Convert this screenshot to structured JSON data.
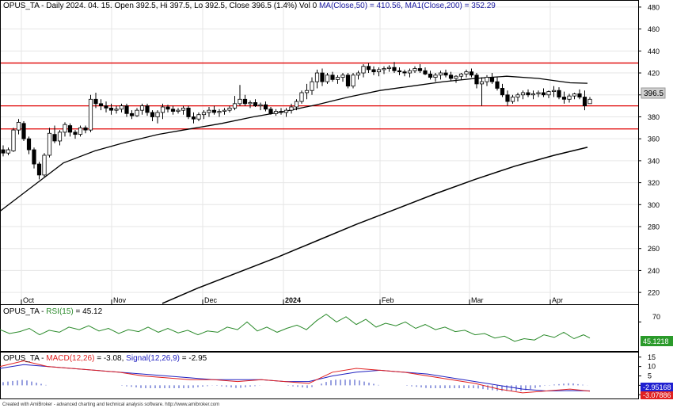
{
  "chart_data": {
    "type": "candlestick",
    "ticker": "OPUS_TA",
    "header": {
      "prefix": "OPUS_TA - Daily 2024. 04. 15. Open 392.5, Hi 397.5, Lo 392.5, Close 396.5 (1.4%) Vol 0",
      "ma50_label": "MA(Close,50) = 410.56",
      "ma200_label": ", MA1(Close,200) = 352.29"
    },
    "price_axis": {
      "min": 210,
      "max": 485,
      "ticks": [
        220,
        240,
        260,
        280,
        300,
        320,
        340,
        360,
        380,
        400,
        420,
        440,
        460,
        480
      ],
      "last_price_label": "396.5"
    },
    "month_labels": [
      {
        "label": "Oct",
        "pos": 27
      },
      {
        "label": "Nov",
        "pos": 141
      },
      {
        "label": "Dec",
        "pos": 256
      },
      {
        "label": "2024",
        "pos": 358,
        "bold": true
      },
      {
        "label": "Feb",
        "pos": 480
      },
      {
        "label": "Mar",
        "pos": 593
      },
      {
        "label": "Apr",
        "pos": 695
      }
    ],
    "horizontal_lines": [
      429,
      390,
      369
    ],
    "candles": [
      [
        350,
        354,
        344,
        347
      ],
      [
        347,
        352,
        345,
        350
      ],
      [
        349,
        370,
        348,
        368
      ],
      [
        368,
        378,
        364,
        375
      ],
      [
        374,
        376,
        358,
        360
      ],
      [
        360,
        362,
        346,
        350
      ],
      [
        350,
        352,
        333,
        337
      ],
      [
        337,
        339,
        323,
        327
      ],
      [
        327,
        347,
        325,
        345
      ],
      [
        345,
        370,
        343,
        365
      ],
      [
        364,
        372,
        356,
        358
      ],
      [
        358,
        368,
        354,
        366
      ],
      [
        366,
        375,
        362,
        373
      ],
      [
        372,
        374,
        362,
        366
      ],
      [
        366,
        368,
        360,
        364
      ],
      [
        364,
        372,
        362,
        370
      ],
      [
        370,
        372,
        365,
        368
      ],
      [
        368,
        400,
        366,
        396
      ],
      [
        396,
        402,
        388,
        392
      ],
      [
        392,
        396,
        386,
        390
      ],
      [
        390,
        394,
        384,
        388
      ],
      [
        388,
        392,
        382,
        386
      ],
      [
        386,
        390,
        383,
        387
      ],
      [
        387,
        392,
        384,
        390
      ],
      [
        390,
        392,
        380,
        383
      ],
      [
        383,
        386,
        378,
        381
      ],
      [
        381,
        388,
        380,
        386
      ],
      [
        386,
        392,
        382,
        390
      ],
      [
        390,
        392,
        381,
        384
      ],
      [
        384,
        386,
        376,
        380
      ],
      [
        380,
        386,
        374,
        384
      ],
      [
        384,
        392,
        378,
        389
      ],
      [
        389,
        391,
        384,
        387
      ],
      [
        387,
        390,
        382,
        385
      ],
      [
        385,
        388,
        383,
        386
      ],
      [
        386,
        390,
        382,
        388
      ],
      [
        388,
        390,
        378,
        380
      ],
      [
        380,
        384,
        374,
        378
      ],
      [
        378,
        384,
        376,
        382
      ],
      [
        382,
        386,
        378,
        384
      ],
      [
        384,
        389,
        380,
        386
      ],
      [
        386,
        390,
        382,
        384
      ],
      [
        384,
        387,
        380,
        385
      ],
      [
        385,
        388,
        382,
        386
      ],
      [
        386,
        390,
        384,
        388
      ],
      [
        388,
        399,
        386,
        392
      ],
      [
        392,
        409,
        390,
        396
      ],
      [
        396,
        400,
        390,
        392
      ],
      [
        392,
        395,
        388,
        393
      ],
      [
        393,
        396,
        389,
        390
      ],
      [
        390,
        393,
        386,
        391
      ],
      [
        391,
        394,
        385,
        387
      ],
      [
        387,
        389,
        382,
        383
      ],
      [
        383,
        387,
        381,
        385
      ],
      [
        385,
        388,
        382,
        384
      ],
      [
        384,
        388,
        380,
        386
      ],
      [
        386,
        392,
        383,
        389
      ],
      [
        389,
        396,
        386,
        394
      ],
      [
        394,
        404,
        392,
        402
      ],
      [
        402,
        410,
        396,
        404
      ],
      [
        404,
        416,
        400,
        412
      ],
      [
        412,
        423,
        406,
        420
      ],
      [
        420,
        424,
        408,
        412
      ],
      [
        412,
        420,
        410,
        418
      ],
      [
        418,
        421,
        412,
        414
      ],
      [
        414,
        418,
        410,
        416
      ],
      [
        416,
        420,
        412,
        418
      ],
      [
        418,
        420,
        406,
        408
      ],
      [
        408,
        420,
        406,
        418
      ],
      [
        418,
        422,
        414,
        420
      ],
      [
        420,
        428,
        416,
        426
      ],
      [
        426,
        429,
        420,
        423
      ],
      [
        423,
        426,
        418,
        421
      ],
      [
        421,
        425,
        417,
        423
      ],
      [
        423,
        426,
        419,
        424
      ],
      [
        424,
        427,
        421,
        425
      ],
      [
        425,
        430,
        420,
        422
      ],
      [
        422,
        425,
        418,
        421
      ],
      [
        421,
        423,
        417,
        420
      ],
      [
        420,
        424,
        416,
        422
      ],
      [
        422,
        426,
        420,
        424
      ],
      [
        424,
        428,
        420,
        422
      ],
      [
        422,
        425,
        418,
        419
      ],
      [
        419,
        422,
        414,
        416
      ],
      [
        416,
        420,
        412,
        418
      ],
      [
        418,
        422,
        414,
        420
      ],
      [
        420,
        423,
        416,
        418
      ],
      [
        418,
        421,
        413,
        415
      ],
      [
        415,
        418,
        411,
        417
      ],
      [
        417,
        420,
        414,
        419
      ],
      [
        419,
        423,
        416,
        421
      ],
      [
        421,
        424,
        416,
        418
      ],
      [
        418,
        420,
        406,
        410
      ],
      [
        410,
        416,
        390,
        412
      ],
      [
        412,
        418,
        408,
        416
      ],
      [
        416,
        420,
        410,
        412
      ],
      [
        412,
        416,
        404,
        406
      ],
      [
        406,
        410,
        398,
        400
      ],
      [
        400,
        404,
        390,
        394
      ],
      [
        394,
        400,
        392,
        398
      ],
      [
        398,
        402,
        394,
        400
      ],
      [
        400,
        404,
        396,
        402
      ],
      [
        402,
        405,
        398,
        400
      ],
      [
        400,
        404,
        396,
        401
      ],
      [
        401,
        404,
        398,
        402
      ],
      [
        402,
        406,
        398,
        400
      ],
      [
        400,
        404,
        397,
        403
      ],
      [
        403,
        408,
        398,
        404
      ],
      [
        404,
        407,
        396,
        398
      ],
      [
        398,
        403,
        392,
        396
      ],
      [
        396,
        401,
        393,
        399
      ],
      [
        399,
        402,
        396,
        401
      ],
      [
        401,
        405,
        396,
        398
      ],
      [
        398,
        404,
        386,
        390
      ],
      [
        392,
        398,
        392,
        396
      ]
    ],
    "ma50": {
      "name": "MA(Close,50)",
      "x": [
        0,
        40,
        80,
        120,
        160,
        200,
        240,
        280,
        320,
        360,
        400,
        440,
        480,
        520,
        560,
        600,
        640,
        680,
        720,
        742
      ],
      "y": [
        294,
        316,
        338,
        349,
        357,
        364,
        369,
        374,
        380,
        385,
        391,
        398,
        404,
        408,
        412,
        415,
        417,
        415,
        411,
        410.56
      ]
    },
    "ma200": {
      "name": "MA1(Close,200)",
      "x": [
        205,
        250,
        300,
        350,
        400,
        450,
        500,
        550,
        600,
        650,
        700,
        742
      ],
      "y": [
        210,
        224,
        238,
        252,
        267,
        282,
        296,
        310,
        323,
        335,
        345,
        352.29
      ]
    },
    "rsi": {
      "title_prefix": "OPUS_TA - ",
      "title_name": "RSI(15)",
      "title_value": " = 45.12",
      "axis_label": "70",
      "last_label": "45.1218",
      "x": [
        0,
        12,
        25,
        37,
        50,
        62,
        75,
        87,
        100,
        112,
        125,
        137,
        150,
        162,
        175,
        187,
        200,
        212,
        225,
        237,
        250,
        262,
        275,
        287,
        300,
        312,
        325,
        337,
        350,
        362,
        375,
        387,
        400,
        412,
        425,
        437,
        450,
        462,
        475,
        487,
        500,
        512,
        525,
        537,
        550,
        562,
        575,
        587,
        600,
        612,
        625,
        637,
        650,
        662,
        675,
        687,
        700,
        712,
        725,
        737,
        745
      ],
      "y": [
        58,
        52,
        55,
        60,
        50,
        57,
        54,
        62,
        58,
        64,
        56,
        60,
        52,
        58,
        55,
        62,
        54,
        60,
        53,
        57,
        50,
        56,
        54,
        62,
        58,
        70,
        56,
        62,
        54,
        60,
        65,
        58,
        72,
        82,
        70,
        78,
        66,
        74,
        62,
        68,
        64,
        70,
        60,
        66,
        58,
        62,
        55,
        57,
        50,
        52,
        45,
        48,
        40,
        44,
        42,
        50,
        46,
        54,
        44,
        50,
        45
      ]
    },
    "macd": {
      "title_prefix": "OPUS_TA - ",
      "title_macd": "MACD(12,26)",
      "title_macd_value": " = -3.08, ",
      "title_signal": "Signal(12,26,9)",
      "title_signal_value": " = -2.95",
      "ticks": [
        15,
        10,
        5,
        0,
        -5
      ],
      "signal_label": "-2.95168",
      "macd_label": "-3.07886",
      "x": [
        0,
        30,
        60,
        90,
        120,
        150,
        180,
        210,
        240,
        270,
        300,
        330,
        360,
        390,
        420,
        450,
        480,
        510,
        540,
        570,
        600,
        630,
        660,
        690,
        720,
        745
      ],
      "macd_y": [
        10,
        13,
        10,
        9,
        8,
        7,
        5,
        4,
        3,
        3,
        2,
        3,
        2,
        1,
        7,
        9,
        8,
        7,
        5,
        3,
        1,
        -2,
        -4,
        -3,
        -2,
        -3.08
      ],
      "signal_y": [
        9,
        11,
        10,
        9,
        8,
        7,
        6,
        5,
        4,
        3,
        3,
        3,
        2,
        2,
        5,
        7,
        8,
        7,
        6,
        4,
        2,
        0,
        -2,
        -3,
        -2.8,
        -2.95
      ]
    },
    "footer": "Created with AmiBroker - advanced charting and technical analysis software. http://www.amibroker.com",
    "colors": {
      "up_fill": "#ffffff",
      "down_fill": "#000000",
      "candle_stroke": "#000000",
      "hline": "#e00000",
      "ma": "#000000",
      "rsi": "#2a8a2a",
      "macd": "#e02020",
      "signal": "#2020c0",
      "hist": "#3040c0",
      "price_badge": "#d0d0d0",
      "rsi_badge": "#2a9a2a",
      "signal_badge": "#2020d0",
      "macd_badge": "#e02020",
      "blue_text": "#1a1aa0"
    }
  }
}
